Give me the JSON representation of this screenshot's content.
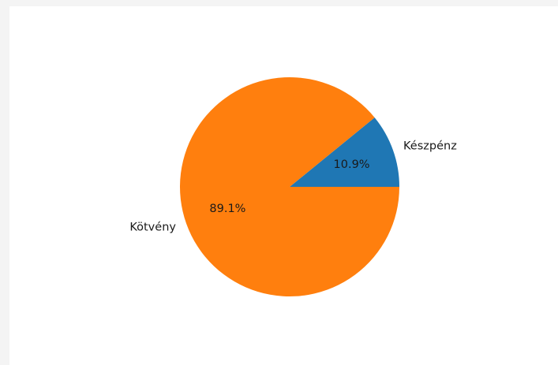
{
  "chart_data": {
    "type": "pie",
    "title": "",
    "categories": [
      "Készpénz",
      "Kötvény"
    ],
    "values": [
      10.9,
      89.1
    ],
    "value_labels": [
      "10.9%",
      "89.1%"
    ],
    "colors": [
      "#1f77b4",
      "#ff7f0e"
    ],
    "start_angle_deg": 0,
    "direction": "counterclockwise",
    "legend": "none"
  }
}
